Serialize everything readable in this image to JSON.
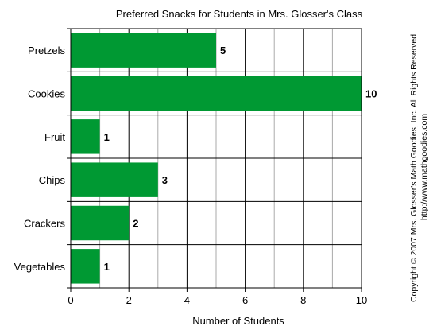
{
  "chart_data": {
    "type": "bar",
    "orientation": "horizontal",
    "title": "Preferred Snacks for Students in Mrs. Glosser's Class",
    "xlabel": "Number of Students",
    "ylabel": "",
    "categories": [
      "Pretzels",
      "Cookies",
      "Fruit",
      "Chips",
      "Crackers",
      "Vegetables"
    ],
    "values": [
      5,
      10,
      1,
      3,
      2,
      1
    ],
    "xlim": [
      0,
      10
    ],
    "xticks": [
      0,
      2,
      4,
      6,
      8,
      10
    ],
    "minor_gridlines": [
      1,
      3,
      5,
      7,
      9
    ],
    "grid": true,
    "data_labels": true,
    "bar_color": "#009933",
    "major_grid_color": "#000000",
    "minor_grid_color": "#aaaaaa"
  },
  "copyright": {
    "line1": "Copyright © 2007 Mrs. Glosser's Math Goodies, Inc. All Rights Reserved.",
    "line2": "http://www.mathgoodies.com"
  }
}
